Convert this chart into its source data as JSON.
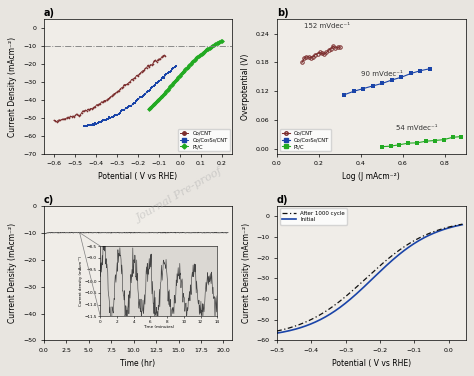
{
  "fig_bg": "#e8e5e0",
  "panel_bg": "#f0ede8",
  "title_a": "a)",
  "title_b": "b)",
  "title_c": "c)",
  "title_d": "d)",
  "color_co_cnt": "#7B2D2D",
  "color_co_co9s8_cnt": "#1A44A8",
  "color_ptc": "#22AA22",
  "color_stability": "#444444",
  "color_initial": "#1A44A8",
  "color_after": "#111111",
  "panel_a": {
    "xlabel": "Potential ( V vs RHE)",
    "ylabel": "Current Density (mAcm⁻²)",
    "xlim": [
      -0.65,
      0.25
    ],
    "ylim": [
      -70,
      5
    ],
    "yticks": [
      -70,
      -60,
      -50,
      -40,
      -30,
      -20,
      -10,
      0
    ],
    "hline_y": -10,
    "legend": [
      "Co/CNT",
      "Co/Co₉S₈/CNT",
      "Pt/C"
    ]
  },
  "panel_b": {
    "xlabel": "Log (J mAcm⁻²)",
    "ylabel": "Overpotential (V)",
    "xlim": [
      0.0,
      0.9
    ],
    "ylim": [
      -0.01,
      0.27
    ],
    "xticks": [
      0.0,
      0.2,
      0.4,
      0.6,
      0.8
    ],
    "yticks": [
      0.0,
      0.06,
      0.12,
      0.18,
      0.24
    ],
    "labels": [
      "152 mVdec⁻¹",
      "90 mVdec⁻¹",
      "54 mVdec⁻¹"
    ],
    "legend": [
      "Co/CNT",
      "Co/Co₉S₈/CNT",
      "Pt/C"
    ]
  },
  "panel_c": {
    "xlabel": "Time (hr)",
    "ylabel": "Current Density (mAcm⁻²)",
    "xlim": [
      0,
      21
    ],
    "ylim": [
      -50,
      0
    ],
    "yticks": [
      -50,
      -40,
      -30,
      -20,
      -10,
      0
    ]
  },
  "panel_d": {
    "xlabel": "Potential ( V vs RHE)",
    "ylabel": "Current Density (mAcm⁻²)",
    "xlim": [
      -0.5,
      0.05
    ],
    "ylim": [
      -60,
      5
    ],
    "yticks": [
      -60,
      -50,
      -40,
      -30,
      -20,
      -10,
      0
    ],
    "legend": [
      "After 1000 cycle",
      "Initial"
    ]
  }
}
